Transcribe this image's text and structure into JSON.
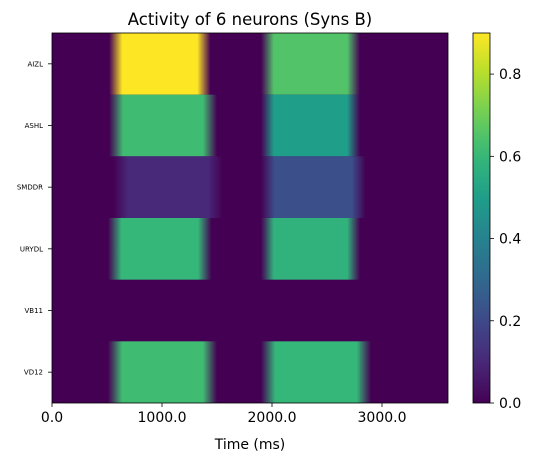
{
  "chart_data": {
    "type": "heatmap",
    "title": "Activity of 6 neurons (Syns B)",
    "xlabel": "Time (ms)",
    "ylabel": "",
    "xlim": [
      0,
      3600
    ],
    "x_ticks": [
      0,
      1000,
      2000,
      3000
    ],
    "x_tick_labels": [
      "0.0",
      "1000.0",
      "2000.0",
      "3000.0"
    ],
    "rows": [
      "AIZL",
      "ASHL",
      "SMDDR",
      "URYDL",
      "VB11",
      "VD12"
    ],
    "series": [
      {
        "name": "AIZL",
        "segments": [
          {
            "start": 520,
            "end": 1440,
            "value": 0.9
          },
          {
            "start": 1900,
            "end": 2800,
            "value": 0.65
          }
        ]
      },
      {
        "name": "ASHL",
        "segments": [
          {
            "start": 520,
            "end": 1500,
            "value": 0.62
          },
          {
            "start": 1900,
            "end": 2800,
            "value": 0.5
          }
        ]
      },
      {
        "name": "SMDDR",
        "segments": [
          {
            "start": 560,
            "end": 1550,
            "value": 0.1
          },
          {
            "start": 1900,
            "end": 2850,
            "value": 0.22
          }
        ]
      },
      {
        "name": "URYDL",
        "segments": [
          {
            "start": 510,
            "end": 1450,
            "value": 0.6
          },
          {
            "start": 1900,
            "end": 2800,
            "value": 0.58
          }
        ]
      },
      {
        "name": "VB11",
        "segments": []
      },
      {
        "name": "VD12",
        "segments": [
          {
            "start": 510,
            "end": 1500,
            "value": 0.62
          },
          {
            "start": 1900,
            "end": 2900,
            "value": 0.6
          }
        ]
      }
    ],
    "colorbar": {
      "colormap": "viridis",
      "vmin": 0.0,
      "vmax": 0.9,
      "ticks": [
        0.0,
        0.2,
        0.4,
        0.6,
        0.8
      ],
      "tick_labels": [
        "0.0",
        "0.2",
        "0.4",
        "0.6",
        "0.8"
      ]
    },
    "grid": false
  }
}
